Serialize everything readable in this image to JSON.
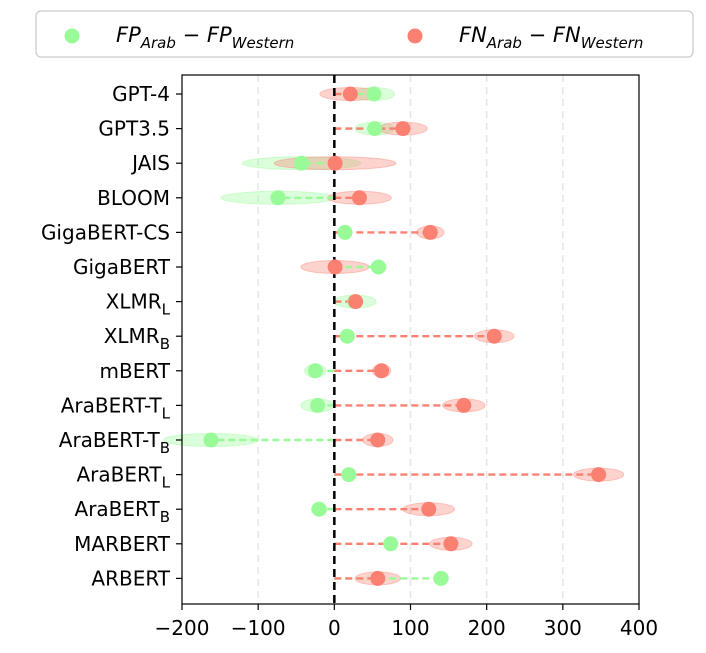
{
  "chart_data": {
    "type": "scatter",
    "title": "",
    "xlabel": "",
    "ylabel": "",
    "xlim": [
      -200,
      400
    ],
    "xticks": [
      -200,
      -100,
      0,
      100,
      200,
      300,
      400
    ],
    "xtick_labels": [
      "−200",
      "−100",
      "0",
      "100",
      "200",
      "300",
      "400"
    ],
    "grid": "vertical dashed",
    "reference_line": 0,
    "legend_position": "top",
    "categories": [
      {
        "label": "GPT-4",
        "sub": ""
      },
      {
        "label": "GPT3.5",
        "sub": ""
      },
      {
        "label": "JAIS",
        "sub": ""
      },
      {
        "label": "BLOOM",
        "sub": ""
      },
      {
        "label": "GigaBERT-CS",
        "sub": ""
      },
      {
        "label": "GigaBERT",
        "sub": ""
      },
      {
        "label": "XLMR",
        "sub": "L"
      },
      {
        "label": "XLMR",
        "sub": "B"
      },
      {
        "label": "mBERT",
        "sub": ""
      },
      {
        "label": "AraBERT-T",
        "sub": "L"
      },
      {
        "label": "AraBERT-T",
        "sub": "B"
      },
      {
        "label": "AraBERT",
        "sub": "L"
      },
      {
        "label": "AraBERT",
        "sub": "B"
      },
      {
        "label": "MARBERT",
        "sub": ""
      },
      {
        "label": "ARBERT",
        "sub": ""
      }
    ],
    "series": [
      {
        "name": "FP_Arab - FP_Western",
        "legend": {
          "a": "FP",
          "a_sub": "Arab",
          "b": "FP",
          "b_sub": "Western"
        },
        "color": "#98fb98",
        "values": [
          52,
          53,
          -43,
          -74,
          14,
          58,
          27,
          17,
          -25,
          -22,
          -162,
          19,
          -20,
          74,
          140
        ],
        "spread": [
          27,
          26,
          78,
          75,
          8,
          10,
          28,
          8,
          14,
          22,
          62,
          6,
          10,
          8,
          10
        ]
      },
      {
        "name": "FN_Arab - FN_Western",
        "legend": {
          "a": "FN",
          "a_sub": "Arab",
          "b": "FN",
          "b_sub": "Western"
        },
        "color": "#fa8072",
        "values": [
          21,
          90,
          1,
          33,
          126,
          1,
          28,
          210,
          62,
          170,
          57,
          347,
          124,
          153,
          57
        ],
        "spread": [
          40,
          32,
          80,
          42,
          18,
          45,
          8,
          26,
          12,
          28,
          20,
          33,
          34,
          28,
          30
        ]
      }
    ]
  }
}
